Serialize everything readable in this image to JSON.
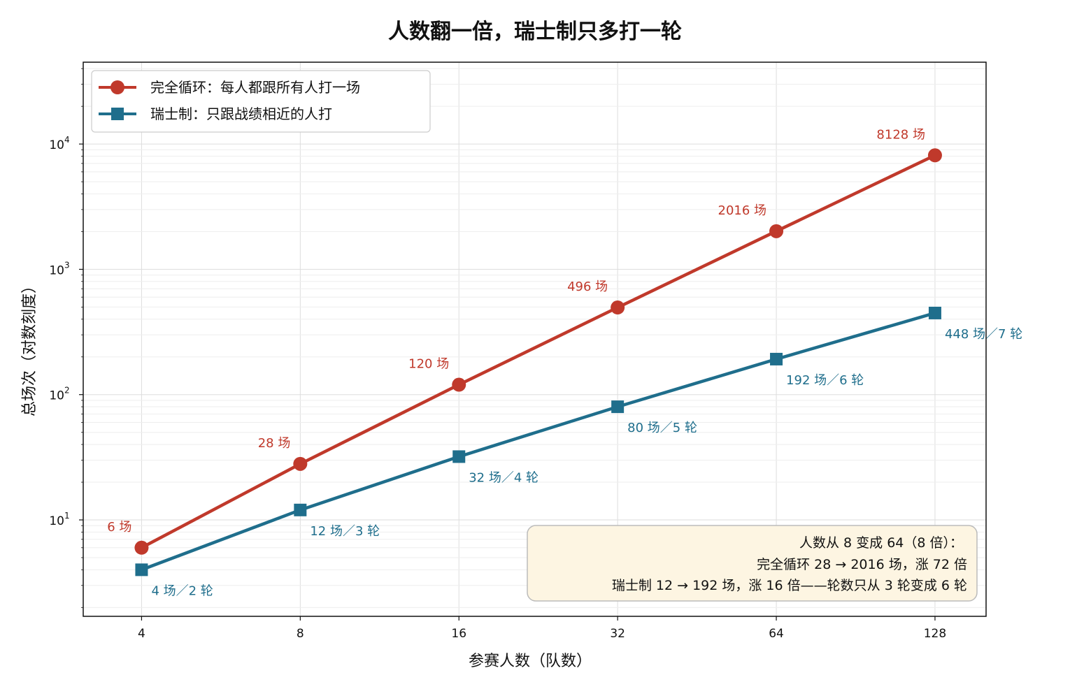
{
  "title": "人数翻一倍，瑞士制只多打一轮",
  "chart_data": {
    "type": "line",
    "xscale": "log2",
    "yscale": "log10",
    "x": [
      4,
      8,
      16,
      32,
      64,
      128
    ],
    "x_tick_labels": [
      "4",
      "8",
      "16",
      "32",
      "64",
      "128"
    ],
    "y_tick_labels": [
      {
        "value": 10,
        "base": "10",
        "exp": "1"
      },
      {
        "value": 100,
        "base": "10",
        "exp": "2"
      },
      {
        "value": 1000,
        "base": "10",
        "exp": "3"
      },
      {
        "value": 10000,
        "base": "10",
        "exp": "4"
      }
    ],
    "xlabel": "参赛人数（队数）",
    "ylabel": "总场次（对数刻度）",
    "ylim": [
      1.7,
      45000
    ],
    "xlim": [
      3.1,
      160
    ],
    "grid": true,
    "legend_position": "top-left",
    "series": [
      {
        "name": "完全循环：每人都跟所有人打一场",
        "color": "#c0392b",
        "marker": "circle",
        "values": [
          6,
          28,
          120,
          496,
          2016,
          8128
        ],
        "labels": [
          "6 场",
          "28 场",
          "120 场",
          "496 场",
          "2016 场",
          "8128 场"
        ]
      },
      {
        "name": "瑞士制：只跟战绩相近的人打",
        "color": "#1f6e8c",
        "marker": "square",
        "values": [
          4,
          12,
          32,
          80,
          192,
          448
        ],
        "labels": [
          "4 场／2 轮",
          "12 场／3 轮",
          "32 场／4 轮",
          "80 场／5 轮",
          "192 场／6 轮",
          "448 场／7 轮"
        ]
      }
    ],
    "annotation": [
      "人数从 8 变成 64（8 倍）：",
      "完全循环 28 → 2016 场，涨 72 倍",
      "瑞士制 12 → 192 场，涨 16 倍——轮数只从 3 轮变成 6 轮"
    ],
    "annotation_background": "#fdf5e2"
  }
}
